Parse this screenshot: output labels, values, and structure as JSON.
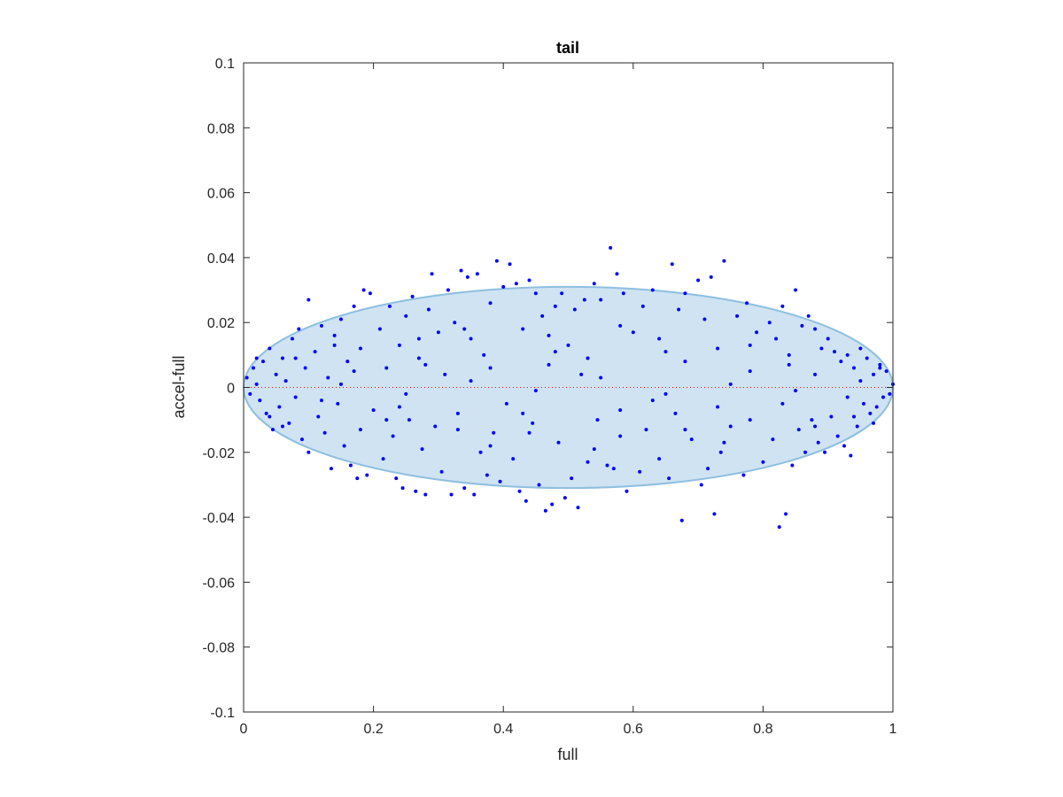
{
  "chart_data": {
    "type": "scatter",
    "title": "tail",
    "xlabel": "full",
    "ylabel": "accel-full",
    "xlim": [
      0,
      1
    ],
    "ylim": [
      -0.1,
      0.1
    ],
    "xticks": [
      0,
      0.2,
      0.4,
      0.6,
      0.8,
      1
    ],
    "xtick_labels": [
      "0",
      "0.2",
      "0.4",
      "0.6",
      "0.8",
      "1"
    ],
    "yticks": [
      -0.1,
      -0.08,
      -0.06,
      -0.04,
      -0.02,
      0,
      0.02,
      0.04,
      0.06,
      0.08,
      0.1
    ],
    "ytick_labels": [
      "-0.1",
      "-0.08",
      "-0.06",
      "-0.04",
      "-0.02",
      "0",
      "0.02",
      "0.04",
      "0.06",
      "0.08",
      "0.1"
    ],
    "grid": false,
    "legend": "none",
    "ellipse": {
      "center_x": 0.5,
      "center_y": 0,
      "half_width_x": 0.5,
      "half_height_y": 0.031,
      "fill": "#cfe3f2",
      "stroke": "#8dbfe0"
    },
    "reference_line": {
      "y": 0,
      "color": "#ff0000",
      "style": "dotted"
    },
    "point_color": "#0000ff",
    "series": [
      {
        "points": [
          [
            0.005,
            0.003
          ],
          [
            0.01,
            -0.002
          ],
          [
            0.015,
            0.006
          ],
          [
            0.02,
            0.001
          ],
          [
            0.025,
            -0.004
          ],
          [
            0.03,
            0.008
          ],
          [
            0.035,
            -0.008
          ],
          [
            0.04,
            0.012
          ],
          [
            0.045,
            -0.013
          ],
          [
            0.05,
            0.004
          ],
          [
            0.055,
            -0.006
          ],
          [
            0.06,
            0.009
          ],
          [
            0.065,
            0.002
          ],
          [
            0.07,
            -0.011
          ],
          [
            0.075,
            0.015
          ],
          [
            0.08,
            -0.003
          ],
          [
            0.085,
            0.018
          ],
          [
            0.09,
            -0.016
          ],
          [
            0.095,
            0.006
          ],
          [
            0.1,
            0.027
          ],
          [
            0.1,
            -0.02
          ],
          [
            0.11,
            0.011
          ],
          [
            0.115,
            -0.009
          ],
          [
            0.12,
            0.019
          ],
          [
            0.125,
            -0.014
          ],
          [
            0.13,
            0.003
          ],
          [
            0.135,
            -0.025
          ],
          [
            0.14,
            0.016
          ],
          [
            0.145,
            -0.005
          ],
          [
            0.15,
            0.021
          ],
          [
            0.155,
            -0.018
          ],
          [
            0.16,
            0.008
          ],
          [
            0.165,
            -0.024
          ],
          [
            0.17,
            0.025
          ],
          [
            0.175,
            -0.028
          ],
          [
            0.18,
            0.012
          ],
          [
            0.185,
            0.03
          ],
          [
            0.19,
            -0.027
          ],
          [
            0.195,
            0.029
          ],
          [
            0.2,
            -0.007
          ],
          [
            0.21,
            0.018
          ],
          [
            0.215,
            -0.022
          ],
          [
            0.22,
            0.006
          ],
          [
            0.225,
            0.025
          ],
          [
            0.23,
            -0.015
          ],
          [
            0.235,
            -0.028
          ],
          [
            0.24,
            0.013
          ],
          [
            0.245,
            -0.031
          ],
          [
            0.25,
            0.022
          ],
          [
            0.255,
            -0.01
          ],
          [
            0.26,
            0.028
          ],
          [
            0.265,
            -0.032
          ],
          [
            0.27,
            0.009
          ],
          [
            0.275,
            -0.019
          ],
          [
            0.28,
            -0.033
          ],
          [
            0.285,
            0.024
          ],
          [
            0.29,
            0.035
          ],
          [
            0.295,
            -0.012
          ],
          [
            0.3,
            0.017
          ],
          [
            0.305,
            -0.026
          ],
          [
            0.31,
            0.004
          ],
          [
            0.315,
            0.03
          ],
          [
            0.32,
            -0.033
          ],
          [
            0.325,
            0.02
          ],
          [
            0.33,
            -0.008
          ],
          [
            0.335,
            0.036
          ],
          [
            0.34,
            -0.031
          ],
          [
            0.345,
            0.034
          ],
          [
            0.35,
            0.015
          ],
          [
            0.355,
            -0.033
          ],
          [
            0.36,
            0.035
          ],
          [
            0.365,
            -0.02
          ],
          [
            0.37,
            0.01
          ],
          [
            0.375,
            -0.027
          ],
          [
            0.38,
            0.026
          ],
          [
            0.385,
            -0.014
          ],
          [
            0.39,
            0.039
          ],
          [
            0.395,
            -0.029
          ],
          [
            0.4,
            0.031
          ],
          [
            0.405,
            -0.005
          ],
          [
            0.41,
            0.038
          ],
          [
            0.415,
            -0.022
          ],
          [
            0.42,
            0.032
          ],
          [
            0.425,
            -0.032
          ],
          [
            0.43,
            0.018
          ],
          [
            0.435,
            -0.035
          ],
          [
            0.44,
            0.033
          ],
          [
            0.445,
            -0.011
          ],
          [
            0.45,
            0.029
          ],
          [
            0.455,
            -0.03
          ],
          [
            0.46,
            0.022
          ],
          [
            0.465,
            -0.038
          ],
          [
            0.47,
            0.007
          ],
          [
            0.475,
            -0.036
          ],
          [
            0.48,
            0.025
          ],
          [
            0.485,
            -0.017
          ],
          [
            0.49,
            0.029
          ],
          [
            0.495,
            -0.034
          ],
          [
            0.5,
            0.013
          ],
          [
            0.505,
            -0.028
          ],
          [
            0.51,
            0.024
          ],
          [
            0.515,
            -0.037
          ],
          [
            0.52,
            0.004
          ],
          [
            0.525,
            0.027
          ],
          [
            0.53,
            -0.023
          ],
          [
            0.54,
            0.032
          ],
          [
            0.545,
            -0.01
          ],
          [
            0.55,
            0.027
          ],
          [
            0.56,
            -0.024
          ],
          [
            0.565,
            0.043
          ],
          [
            0.57,
            -0.025
          ],
          [
            0.575,
            0.035
          ],
          [
            0.58,
            -0.007
          ],
          [
            0.585,
            0.029
          ],
          [
            0.59,
            -0.032
          ],
          [
            0.6,
            0.017
          ],
          [
            0.61,
            -0.026
          ],
          [
            0.615,
            0.025
          ],
          [
            0.62,
            -0.013
          ],
          [
            0.63,
            0.03
          ],
          [
            0.64,
            -0.022
          ],
          [
            0.65,
            0.011
          ],
          [
            0.655,
            -0.028
          ],
          [
            0.66,
            0.038
          ],
          [
            0.665,
            -0.008
          ],
          [
            0.67,
            0.024
          ],
          [
            0.675,
            -0.041
          ],
          [
            0.68,
            0.029
          ],
          [
            0.69,
            -0.016
          ],
          [
            0.7,
            0.033
          ],
          [
            0.705,
            -0.03
          ],
          [
            0.71,
            0.021
          ],
          [
            0.715,
            -0.025
          ],
          [
            0.72,
            0.034
          ],
          [
            0.725,
            -0.039
          ],
          [
            0.73,
            0.012
          ],
          [
            0.735,
            -0.02
          ],
          [
            0.74,
            0.039
          ],
          [
            0.75,
            -0.012
          ],
          [
            0.76,
            0.022
          ],
          [
            0.77,
            -0.027
          ],
          [
            0.775,
            0.026
          ],
          [
            0.78,
            -0.01
          ],
          [
            0.79,
            0.017
          ],
          [
            0.8,
            -0.023
          ],
          [
            0.81,
            0.02
          ],
          [
            0.815,
            -0.016
          ],
          [
            0.82,
            0.015
          ],
          [
            0.825,
            -0.043
          ],
          [
            0.83,
            0.025
          ],
          [
            0.835,
            -0.039
          ],
          [
            0.84,
            0.01
          ],
          [
            0.845,
            -0.024
          ],
          [
            0.85,
            0.03
          ],
          [
            0.855,
            -0.013
          ],
          [
            0.86,
            0.019
          ],
          [
            0.865,
            -0.02
          ],
          [
            0.87,
            0.022
          ],
          [
            0.875,
            -0.01
          ],
          [
            0.88,
            0.018
          ],
          [
            0.885,
            -0.017
          ],
          [
            0.89,
            0.012
          ],
          [
            0.895,
            -0.02
          ],
          [
            0.9,
            0.015
          ],
          [
            0.905,
            -0.009
          ],
          [
            0.91,
            0.011
          ],
          [
            0.915,
            -0.015
          ],
          [
            0.92,
            0.008
          ],
          [
            0.925,
            -0.018
          ],
          [
            0.93,
            0.01
          ],
          [
            0.935,
            -0.021
          ],
          [
            0.94,
            0.006
          ],
          [
            0.945,
            -0.012
          ],
          [
            0.95,
            0.012
          ],
          [
            0.955,
            -0.005
          ],
          [
            0.96,
            0.009
          ],
          [
            0.965,
            -0.008
          ],
          [
            0.97,
            0.004
          ],
          [
            0.975,
            -0.006
          ],
          [
            0.98,
            0.006
          ],
          [
            0.985,
            -0.003
          ],
          [
            0.99,
            0.005
          ],
          [
            0.995,
            -0.002
          ],
          [
            1.0,
            0.001
          ],
          [
            0.02,
            0.009
          ],
          [
            0.06,
            -0.012
          ],
          [
            0.12,
            -0.004
          ],
          [
            0.17,
            0.005
          ],
          [
            0.22,
            -0.01
          ],
          [
            0.27,
            0.015
          ],
          [
            0.33,
            -0.013
          ],
          [
            0.38,
            0.006
          ],
          [
            0.43,
            -0.008
          ],
          [
            0.47,
            0.016
          ],
          [
            0.53,
            0.009
          ],
          [
            0.58,
            -0.015
          ],
          [
            0.63,
            -0.004
          ],
          [
            0.68,
            0.008
          ],
          [
            0.73,
            -0.006
          ],
          [
            0.78,
            0.013
          ],
          [
            0.83,
            -0.005
          ],
          [
            0.88,
            0.004
          ],
          [
            0.93,
            -0.003
          ],
          [
            0.97,
            -0.011
          ],
          [
            0.15,
            0.001
          ],
          [
            0.25,
            -0.002
          ],
          [
            0.35,
            0.002
          ],
          [
            0.45,
            -0.001
          ],
          [
            0.55,
            0.003
          ],
          [
            0.65,
            -0.002
          ],
          [
            0.75,
            0.001
          ],
          [
            0.85,
            -0.001
          ],
          [
            0.95,
            0.002
          ],
          [
            0.08,
            0.009
          ],
          [
            0.18,
            -0.013
          ],
          [
            0.28,
            0.007
          ],
          [
            0.38,
            -0.018
          ],
          [
            0.48,
            0.011
          ],
          [
            0.58,
            0.019
          ],
          [
            0.68,
            -0.013
          ],
          [
            0.78,
            0.005
          ],
          [
            0.88,
            -0.012
          ],
          [
            0.98,
            0.007
          ],
          [
            0.04,
            -0.009
          ],
          [
            0.14,
            0.013
          ],
          [
            0.24,
            -0.006
          ],
          [
            0.34,
            0.018
          ],
          [
            0.44,
            -0.014
          ],
          [
            0.54,
            -0.019
          ],
          [
            0.64,
            0.015
          ],
          [
            0.74,
            -0.017
          ],
          [
            0.84,
            0.007
          ],
          [
            0.94,
            -0.009
          ]
        ]
      }
    ]
  }
}
